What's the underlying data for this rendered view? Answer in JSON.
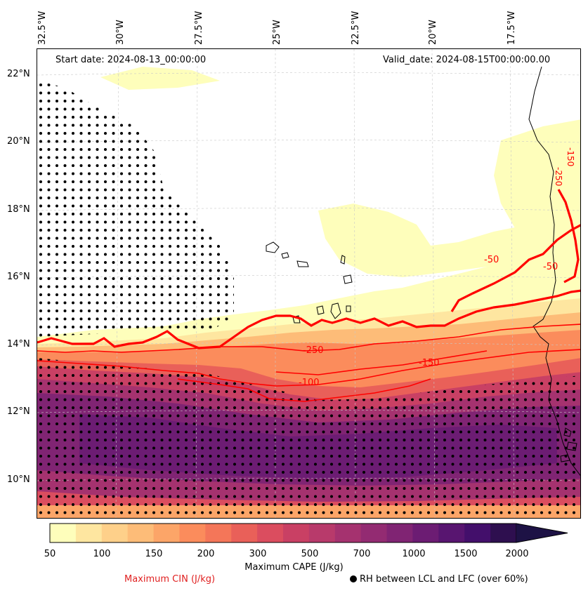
{
  "annotations": {
    "start_date": "Start date: 2024-08-13_00:00:00",
    "valid_date": "Valid_date: 2024-08-15T00:00:00.00"
  },
  "axes": {
    "longitudes": [
      "32.5°W",
      "30°W",
      "27.5°W",
      "25°W",
      "22.5°W",
      "20°W",
      "17.5°W"
    ],
    "latitudes": [
      "22°N",
      "20°N",
      "18°N",
      "16°N",
      "14°N",
      "12°N",
      "10°N"
    ]
  },
  "cin_contour_labels": [
    "-250",
    "-150",
    "-100",
    "-50",
    "-50",
    "-250",
    "-150"
  ],
  "colorbar": {
    "title": "Maximum CAPE (J/kg)",
    "ticks": [
      "50",
      "100",
      "150",
      "200",
      "300",
      "500",
      "700",
      "1000",
      "1500",
      "2000"
    ],
    "colors": [
      "#fefebb",
      "#fee6a0",
      "#fed08a",
      "#fdbc78",
      "#fca568",
      "#fb8c5c",
      "#f47659",
      "#e96059",
      "#db4d5f",
      "#c94064",
      "#b83a6b",
      "#a5326f",
      "#932b72",
      "#802473",
      "#6c1c73",
      "#581570",
      "#430f6b",
      "#2e0f4f",
      "#1d1245"
    ]
  },
  "legend": {
    "cin": "Maximum CIN (J/kg)",
    "rh": "RH between LCL and LFC (over 60%)",
    "cin_color": "#e02020"
  }
}
